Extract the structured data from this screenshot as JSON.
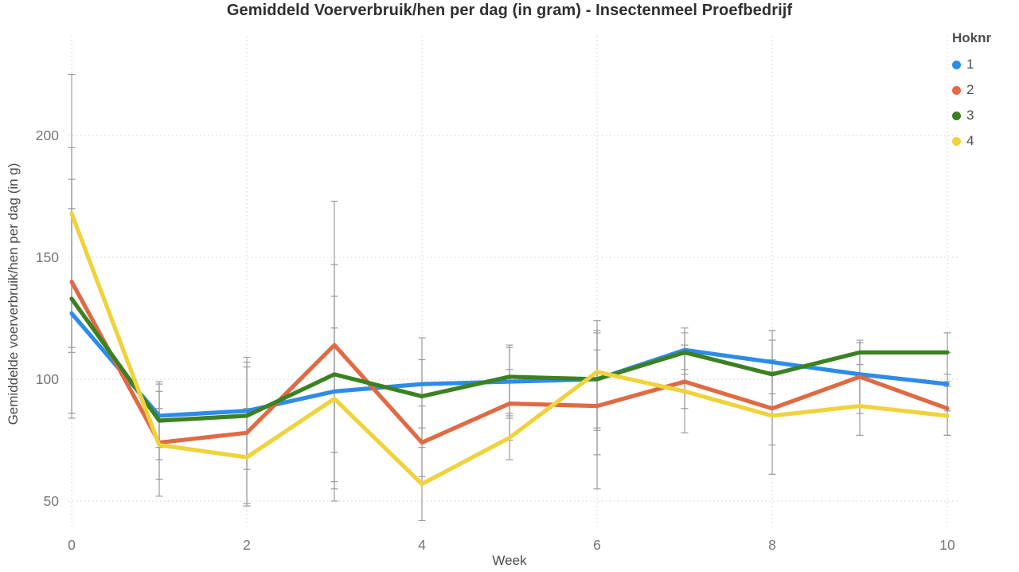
{
  "chart_data": {
    "type": "line",
    "title": "Gemiddeld Voerverbruik/hen per dag (in gram) - Insectenmeel Proefbedrijf",
    "xlabel": "Week",
    "ylabel": "Gemiddelde voerverbruik/hen per dag (in g)",
    "legend_title": "Hoknr",
    "legend_position": "top-right",
    "grid": "dotted",
    "grid_color": "#cfcfcf",
    "error_bar_color": "#9b9b9b",
    "tick_label_color": "#757575",
    "x": [
      0,
      1,
      2,
      3,
      4,
      5,
      6,
      7,
      8,
      9,
      10
    ],
    "xticks": [
      0,
      2,
      4,
      6,
      8,
      10
    ],
    "yticks": [
      50,
      100,
      150,
      200
    ],
    "xlim": [
      0,
      10
    ],
    "ylim": [
      40,
      240
    ],
    "series": [
      {
        "name": "1",
        "color": "#2D8CE8",
        "values": [
          127,
          85,
          87,
          95,
          98,
          99,
          100,
          112,
          107,
          102,
          98
        ],
        "error_bars": [
          [
            113,
            170
          ],
          [
            72,
            98
          ],
          [
            68,
            109
          ],
          [
            58,
            121
          ],
          [
            80,
            117
          ],
          [
            84,
            113
          ],
          [
            79,
            119
          ],
          [
            104,
            121
          ],
          [
            94,
            120
          ],
          [
            89,
            115
          ],
          [
            87,
            111
          ]
        ]
      },
      {
        "name": "2",
        "color": "#DF6A44",
        "values": [
          140,
          74,
          78,
          114,
          74,
          90,
          89,
          99,
          88,
          101,
          88
        ],
        "error_bars": [
          [
            86,
            195
          ],
          [
            52,
            95
          ],
          [
            49,
            105
          ],
          [
            55,
            173
          ],
          [
            60,
            89
          ],
          [
            75,
            104
          ],
          [
            55,
            112
          ],
          [
            88,
            110
          ],
          [
            73,
            103
          ],
          [
            86,
            115
          ],
          [
            77,
            99
          ]
        ]
      },
      {
        "name": "3",
        "color": "#3C8121",
        "values": [
          133,
          83,
          85,
          102,
          93,
          101,
          100,
          111,
          102,
          111,
          111
        ],
        "error_bars": [
          [
            84,
            182
          ],
          [
            67,
            99
          ],
          [
            63,
            107
          ],
          [
            70,
            134
          ],
          [
            75,
            108
          ],
          [
            85,
            114
          ],
          [
            80,
            120
          ],
          [
            102,
            119
          ],
          [
            88,
            116
          ],
          [
            106,
            116
          ],
          [
            102,
            119
          ]
        ]
      },
      {
        "name": "4",
        "color": "#EFD23C",
        "values": [
          168,
          73,
          68,
          92,
          57,
          76,
          103,
          95,
          85,
          89,
          85
        ],
        "error_bars": [
          [
            111,
            225
          ],
          [
            59,
            88
          ],
          [
            48,
            88
          ],
          [
            50,
            147
          ],
          [
            42,
            72
          ],
          [
            67,
            86
          ],
          [
            69,
            124
          ],
          [
            78,
            114
          ],
          [
            61,
            108
          ],
          [
            77,
            101
          ],
          [
            77,
            97
          ]
        ]
      }
    ]
  }
}
